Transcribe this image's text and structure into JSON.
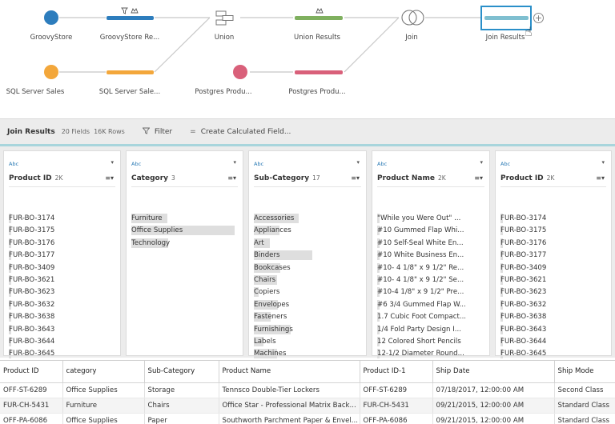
{
  "flow": {
    "nodes": [
      {
        "id": "groovystore",
        "label": "GroovyStore",
        "shape": "circle",
        "color": "#2d7dbd"
      },
      {
        "id": "groovystore-clean",
        "label": "GroovyStore Re...",
        "shape": "bar",
        "color": "#2d7dbd",
        "icons": "filter-icon,rename-icon"
      },
      {
        "id": "union",
        "label": "Union",
        "shape": "union-icon",
        "color": "#777777"
      },
      {
        "id": "union-results",
        "label": "Union Results",
        "shape": "bar",
        "color": "#7fb05f",
        "icons": "rename-icon"
      },
      {
        "id": "join",
        "label": "Join",
        "shape": "join-icon",
        "color": "#777777"
      },
      {
        "id": "join-results",
        "label": "Join Results",
        "shape": "bar",
        "color": "#7fbfd0",
        "selected": true
      },
      {
        "id": "sqlserver",
        "label": "SQL Server Sales",
        "shape": "circle",
        "color": "#f3a73b"
      },
      {
        "id": "sqlserver-clean",
        "label": "SQL Server Sale...",
        "shape": "bar",
        "color": "#f3a73b"
      },
      {
        "id": "postgres",
        "label": "Postgres Produ...",
        "shape": "circle",
        "color": "#d9607a"
      },
      {
        "id": "postgres-clean",
        "label": "Postgres Produ...",
        "shape": "bar",
        "color": "#d9607a"
      }
    ]
  },
  "toolbar": {
    "title": "Join Results",
    "fields": "20 Fields",
    "rows": "16K Rows",
    "filter_label": "Filter",
    "calc_label": "Create Calculated Field..."
  },
  "cards": [
    {
      "type": "Abc",
      "name": "Product ID",
      "count": "2K",
      "values": [
        "FUR-BO-3174",
        "FUR-BO-3175",
        "FUR-BO-3176",
        "FUR-BO-3177",
        "FUR-BO-3409",
        "FUR-BO-3621",
        "FUR-BO-3623",
        "FUR-BO-3632",
        "FUR-BO-3638",
        "FUR-BO-3643",
        "FUR-BO-3644",
        "FUR-BO-3645"
      ],
      "highlights": [
        0.03,
        0.03,
        0.03,
        0.03,
        0.03,
        0.03,
        0.03,
        0.03,
        0.03,
        0.03,
        0.03,
        0.03
      ]
    },
    {
      "type": "Abc",
      "name": "Category",
      "count": "3",
      "values": [
        "Furniture",
        "Office Supplies",
        "Technology"
      ],
      "highlights": [
        0.35,
        1.0,
        0.36
      ]
    },
    {
      "type": "Abc",
      "name": "Sub-Category",
      "count": "17",
      "values": [
        "Accessories",
        "Appliances",
        "Art",
        "Binders",
        "Bookcases",
        "Chairs",
        "Copiers",
        "Envelopes",
        "Fasteners",
        "Furnishings",
        "Labels",
        "Machines"
      ],
      "highlights": [
        0.44,
        0.25,
        0.16,
        0.57,
        0.26,
        0.23,
        0.05,
        0.24,
        0.17,
        0.36,
        0.1,
        0.23
      ]
    },
    {
      "type": "Abc",
      "name": "Product Name",
      "count": "2K",
      "values": [
        "\"While you Were Out\" ...",
        "#10 Gummed Flap Whi...",
        "#10 Self-Seal White En...",
        "#10 White Business En...",
        "#10- 4 1/8\" x 9 1/2\" Re...",
        "#10- 4 1/8\" x 9 1/2\" Se...",
        "#10-4 1/8\" x 9 1/2\" Pre...",
        "#6 3/4 Gummed Flap W...",
        "1.7 Cubic Foot Compact...",
        "1/4 Fold Party Design I...",
        "12 Colored Short Pencils",
        "12-1/2 Diameter Round..."
      ],
      "highlights": [
        0.02,
        0.02,
        0.02,
        0.02,
        0.02,
        0.02,
        0.02,
        0.02,
        0.02,
        0.02,
        0.02,
        0.02
      ]
    },
    {
      "type": "Abc",
      "name": "Product ID",
      "count": "2K",
      "values": [
        "FUR-BO-3174",
        "FUR-BO-3175",
        "FUR-BO-3176",
        "FUR-BO-3177",
        "FUR-BO-3409",
        "FUR-BO-3621",
        "FUR-BO-3623",
        "FUR-BO-3632",
        "FUR-BO-3638",
        "FUR-BO-3643",
        "FUR-BO-3644",
        "FUR-BO-3645"
      ],
      "highlights": [
        0.03,
        0.03,
        0.03,
        0.03,
        0.03,
        0.03,
        0.03,
        0.03,
        0.03,
        0.03,
        0.03,
        0.03
      ]
    }
  ],
  "grid": {
    "columns": [
      "Product ID",
      "category",
      "Sub-Category",
      "Product Name",
      "Product ID-1",
      "Ship Date",
      "Ship Mode"
    ],
    "rows": [
      [
        "OFF-ST-6289",
        "Office Supplies",
        "Storage",
        "Tennsco Double-Tier Lockers",
        "OFF-ST-6289",
        "07/18/2017, 12:00:00 AM",
        "Second Class"
      ],
      [
        "FUR-CH-5431",
        "Furniture",
        "Chairs",
        "Office Star - Professional Matrix Back...",
        "FUR-CH-5431",
        "09/21/2015, 12:00:00 AM",
        "Standard Class"
      ],
      [
        "OFF-PA-6086",
        "Office Supplies",
        "Paper",
        "Southworth Parchment Paper & Envel...",
        "OFF-PA-6086",
        "09/21/2015, 12:00:00 AM",
        "Standard Class"
      ]
    ]
  }
}
